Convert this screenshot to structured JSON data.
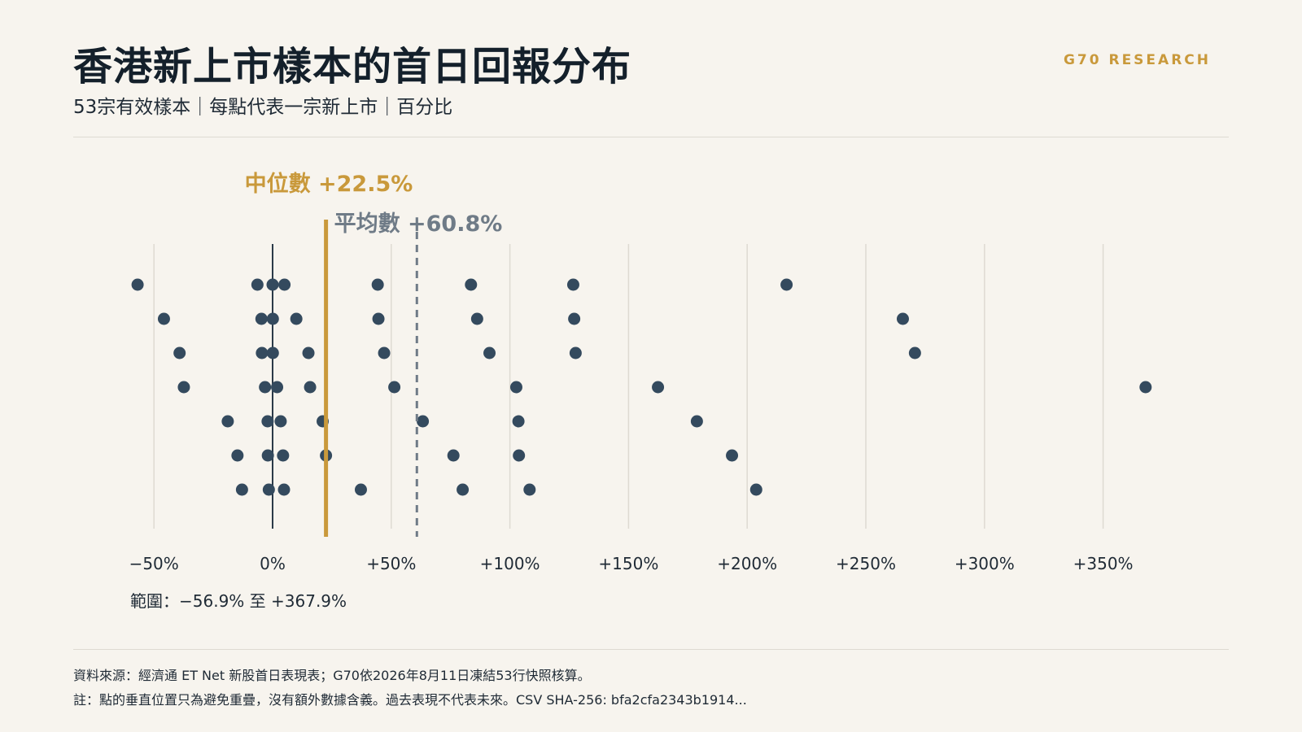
{
  "header": {
    "title": "香港新上市樣本的首日回報分布",
    "subtitle": "53宗有效樣本｜每點代表一宗新上市｜百分比",
    "brand": "G70 RESEARCH"
  },
  "chart_data": {
    "type": "scatter",
    "style": "beeswarm-strip",
    "xlim": [
      -57,
      378
    ],
    "xticks": [
      -50,
      0,
      50,
      100,
      150,
      200,
      250,
      300,
      350
    ],
    "xtick_labels": [
      "−50%",
      "0%",
      "+50%",
      "+100%",
      "+150%",
      "+200%",
      "+250%",
      "+300%",
      "+350%"
    ],
    "grid": true,
    "median": {
      "value": 22.5,
      "label": "中位數 +22.5%"
    },
    "mean": {
      "value": 60.8,
      "label": "平均數 +60.8%"
    },
    "range_note": "範圍：−56.9% 至 +367.9%",
    "points": [
      {
        "x": -56.9,
        "row": 0
      },
      {
        "x": -45.8,
        "row": 1
      },
      {
        "x": -39.2,
        "row": 2
      },
      {
        "x": -37.4,
        "row": 3
      },
      {
        "x": -18.9,
        "row": 4
      },
      {
        "x": -14.8,
        "row": 5
      },
      {
        "x": -12.9,
        "row": 6
      },
      {
        "x": -6.4,
        "row": 0
      },
      {
        "x": -4.7,
        "row": 1
      },
      {
        "x": -4.5,
        "row": 2
      },
      {
        "x": -3.2,
        "row": 3
      },
      {
        "x": -2.1,
        "row": 4
      },
      {
        "x": -2.0,
        "row": 5
      },
      {
        "x": -1.6,
        "row": 6
      },
      {
        "x": 0.0,
        "row": 0
      },
      {
        "x": 0.1,
        "row": 1
      },
      {
        "x": 0.1,
        "row": 2
      },
      {
        "x": 1.9,
        "row": 3
      },
      {
        "x": 3.4,
        "row": 4
      },
      {
        "x": 4.4,
        "row": 5
      },
      {
        "x": 4.8,
        "row": 6
      },
      {
        "x": 5.0,
        "row": 0
      },
      {
        "x": 10.0,
        "row": 1
      },
      {
        "x": 15.1,
        "row": 2
      },
      {
        "x": 15.8,
        "row": 3
      },
      {
        "x": 21.1,
        "row": 4
      },
      {
        "x": 22.5,
        "row": 5
      },
      {
        "x": 37.2,
        "row": 6
      },
      {
        "x": 44.3,
        "row": 0
      },
      {
        "x": 44.6,
        "row": 1
      },
      {
        "x": 47.0,
        "row": 2
      },
      {
        "x": 51.3,
        "row": 3
      },
      {
        "x": 63.3,
        "row": 4
      },
      {
        "x": 76.2,
        "row": 5
      },
      {
        "x": 80.1,
        "row": 6
      },
      {
        "x": 83.6,
        "row": 0
      },
      {
        "x": 86.2,
        "row": 1
      },
      {
        "x": 91.4,
        "row": 2
      },
      {
        "x": 102.7,
        "row": 3
      },
      {
        "x": 103.6,
        "row": 4
      },
      {
        "x": 103.8,
        "row": 5
      },
      {
        "x": 108.3,
        "row": 6
      },
      {
        "x": 126.7,
        "row": 0
      },
      {
        "x": 127.1,
        "row": 1
      },
      {
        "x": 127.7,
        "row": 2
      },
      {
        "x": 162.4,
        "row": 3
      },
      {
        "x": 178.8,
        "row": 4
      },
      {
        "x": 193.6,
        "row": 5
      },
      {
        "x": 203.8,
        "row": 6
      },
      {
        "x": 216.6,
        "row": 0
      },
      {
        "x": 265.6,
        "row": 1
      },
      {
        "x": 270.7,
        "row": 2
      },
      {
        "x": 367.9,
        "row": 3
      }
    ]
  },
  "footer": {
    "source": "資料來源：經濟通 ET Net 新股首日表現表；G70依2026年8月11日凍結53行快照核算。",
    "note": "註：點的垂直位置只為避免重疊，沒有額外數據含義。過去表現不代表未來。CSV SHA-256: bfa2cfa2343b1914..."
  },
  "colors": {
    "background": "#f7f4ee",
    "dot": "#344a5e",
    "median": "#c9993b",
    "mean": "#6f7b87",
    "grid": "#dedad2",
    "zero": "#2b3a48"
  }
}
